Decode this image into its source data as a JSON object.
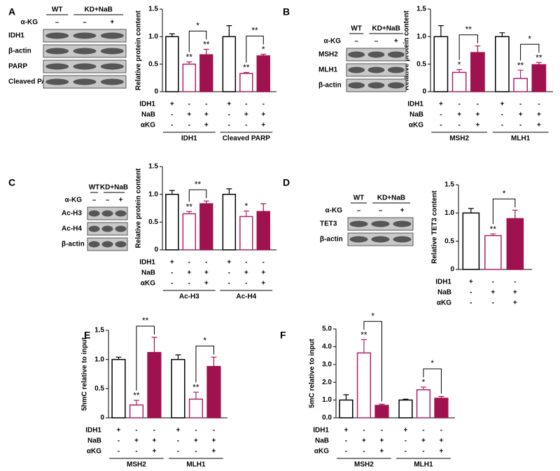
{
  "chart_data": [
    {
      "panel": "A",
      "type": "bar",
      "ylabel": "Relative protein content",
      "ylim": [
        0,
        1.5
      ],
      "yticks": [
        0,
        0.5,
        {
          "value": 1,
          "label": "1.0"
        },
        1.5
      ],
      "categories": [
        "IDH1",
        "Cleaved PARP"
      ],
      "condition_labels": [
        "IDH1",
        "NaB",
        "αKG"
      ],
      "series": [
        {
          "color": "#ffffff",
          "edgecolor": "#000000",
          "conditions": [
            "+",
            "-",
            "-"
          ],
          "values": [
            1.0,
            1.0
          ],
          "errors": [
            0.05,
            0.2
          ]
        },
        {
          "color": "#ffffff",
          "edgecolor": "#b0206a",
          "conditions": [
            "-",
            "+",
            "-"
          ],
          "values": [
            0.5,
            0.33
          ],
          "errors": [
            0.04,
            0.02
          ],
          "star_labels": [
            "**",
            "**"
          ]
        },
        {
          "color": "#a0124f",
          "edgecolor": "#a0124f",
          "conditions": [
            "-",
            "+",
            "+"
          ],
          "values": [
            0.67,
            0.65
          ],
          "errors": [
            0.1,
            0.03
          ],
          "star_labels": [
            "**",
            "*"
          ]
        }
      ],
      "bracket_labels": [
        "*",
        "**"
      ]
    },
    {
      "panel": "B",
      "type": "bar",
      "ylabel": "Relative protein content",
      "ylim": [
        0,
        1.5
      ],
      "yticks": [
        0,
        0.5,
        {
          "value": 1,
          "label": "1.0"
        },
        1.5
      ],
      "categories": [
        "MSH2",
        "MLH1"
      ],
      "condition_labels": [
        "IDH1",
        "NaB",
        "αKG"
      ],
      "series": [
        {
          "color": "#ffffff",
          "edgecolor": "#000000",
          "conditions": [
            "+",
            "-",
            "-"
          ],
          "values": [
            1.0,
            1.0
          ],
          "errors": [
            0.2,
            0.07
          ]
        },
        {
          "color": "#ffffff",
          "edgecolor": "#b0206a",
          "conditions": [
            "-",
            "+",
            "-"
          ],
          "values": [
            0.35,
            0.24
          ],
          "errors": [
            0.05,
            0.15
          ],
          "star_labels": [
            "*",
            "**"
          ]
        },
        {
          "color": "#a0124f",
          "edgecolor": "#a0124f",
          "conditions": [
            "-",
            "+",
            "+"
          ],
          "values": [
            0.71,
            0.49
          ],
          "errors": [
            0.12,
            0.04
          ],
          "star_labels": [
            null,
            "**"
          ]
        }
      ],
      "bracket_labels": [
        "**",
        "*"
      ]
    },
    {
      "panel": "C",
      "type": "bar",
      "ylabel": "Relative protein content",
      "ylim": [
        0,
        1.5
      ],
      "yticks": [
        0,
        0.5,
        {
          "value": 1,
          "label": "1.0"
        },
        1.5
      ],
      "categories": [
        "Ac-H3",
        "Ac-H4"
      ],
      "condition_labels": [
        "IDH1",
        "NaB",
        "αKG"
      ],
      "series": [
        {
          "color": "#ffffff",
          "edgecolor": "#000000",
          "conditions": [
            "+",
            "-",
            "-"
          ],
          "values": [
            1.0,
            1.0
          ],
          "errors": [
            0.07,
            0.1
          ]
        },
        {
          "color": "#ffffff",
          "edgecolor": "#b0206a",
          "conditions": [
            "-",
            "+",
            "-"
          ],
          "values": [
            0.65,
            0.6
          ],
          "errors": [
            0.04,
            0.1
          ],
          "star_labels": [
            "**",
            "*"
          ]
        },
        {
          "color": "#a0124f",
          "edgecolor": "#a0124f",
          "conditions": [
            "-",
            "+",
            "+"
          ],
          "values": [
            0.83,
            0.69
          ],
          "errors": [
            0.05,
            0.14
          ]
        }
      ],
      "bracket_labels": [
        "**",
        null
      ]
    },
    {
      "panel": "D",
      "type": "bar",
      "ylabel": "Relative TET3 content",
      "ylim": [
        0,
        1.5
      ],
      "yticks": [
        0,
        0.5,
        {
          "value": 1,
          "label": "1.0"
        },
        1.5
      ],
      "categories": [
        null
      ],
      "condition_labels": [
        "IDH1",
        "NaB",
        "αKG"
      ],
      "series": [
        {
          "color": "#ffffff",
          "edgecolor": "#000000",
          "conditions": [
            "+",
            "-",
            "-"
          ],
          "values": [
            1.0
          ],
          "errors": [
            0.08
          ]
        },
        {
          "color": "#ffffff",
          "edgecolor": "#b0206a",
          "conditions": [
            "-",
            "+",
            "-"
          ],
          "values": [
            0.6
          ],
          "errors": [
            0.03
          ],
          "star_labels": [
            "**"
          ]
        },
        {
          "color": "#a0124f",
          "edgecolor": "#a0124f",
          "conditions": [
            "-",
            "+",
            "+"
          ],
          "values": [
            0.9
          ],
          "errors": [
            0.15
          ]
        }
      ],
      "bracket_labels": [
        "*"
      ]
    },
    {
      "panel": "E",
      "type": "bar",
      "ylabel": "5hmC relative to input",
      "ylim": [
        0,
        1.5
      ],
      "yticks": [
        0,
        0.5,
        {
          "value": 1,
          "label": "1.0"
        },
        1.5
      ],
      "categories": [
        "MSH2",
        "MLH1"
      ],
      "condition_labels": [
        "IDH1",
        "NaB",
        "αKG"
      ],
      "series": [
        {
          "color": "#ffffff",
          "edgecolor": "#000000",
          "conditions": [
            "+",
            "-",
            "-"
          ],
          "values": [
            1.0,
            1.0
          ],
          "errors": [
            0.04,
            0.08
          ]
        },
        {
          "color": "#ffffff",
          "edgecolor": "#b0206a",
          "conditions": [
            "-",
            "+",
            "-"
          ],
          "values": [
            0.22,
            0.32
          ],
          "errors": [
            0.08,
            0.12
          ],
          "star_labels": [
            "**",
            "**"
          ]
        },
        {
          "color": "#a0124f",
          "edgecolor": "#a0124f",
          "conditions": [
            "-",
            "+",
            "+"
          ],
          "values": [
            1.12,
            0.88
          ],
          "errors": [
            0.26,
            0.16
          ]
        }
      ],
      "bracket_labels": [
        "**",
        "*"
      ]
    },
    {
      "panel": "F",
      "type": "bar",
      "ylabel": "5mC relative to input",
      "ylim": [
        0,
        5
      ],
      "yticks": [
        {
          "value": 0,
          "label": "0.0"
        },
        {
          "value": 1,
          "label": "1.0"
        },
        {
          "value": 2,
          "label": "2.0"
        },
        {
          "value": 3,
          "label": "3.0"
        },
        {
          "value": 4,
          "label": "4.0"
        },
        {
          "value": 5,
          "label": "5.0"
        }
      ],
      "categories": [
        "MSH2",
        "MLH1"
      ],
      "condition_labels": [
        "IDH1",
        "NaB",
        "αKG"
      ],
      "series": [
        {
          "color": "#ffffff",
          "edgecolor": "#000000",
          "conditions": [
            "+",
            "-",
            "-"
          ],
          "values": [
            1.0,
            1.0
          ],
          "errors": [
            0.3,
            0.05
          ]
        },
        {
          "color": "#ffffff",
          "edgecolor": "#b0206a",
          "conditions": [
            "-",
            "+",
            "-"
          ],
          "values": [
            3.65,
            1.58
          ],
          "errors": [
            0.75,
            0.15
          ],
          "star_labels": [
            "**",
            "*"
          ]
        },
        {
          "color": "#a0124f",
          "edgecolor": "#a0124f",
          "conditions": [
            "-",
            "+",
            "+"
          ],
          "values": [
            0.7,
            1.1
          ],
          "errors": [
            0.07,
            0.1
          ]
        }
      ],
      "bracket_labels": [
        "*",
        "*"
      ]
    }
  ],
  "blots": [
    {
      "lanes": [
        "WT",
        "KD+NaB"
      ],
      "treatment": "α-KG",
      "signs": [
        "–",
        "–",
        "+"
      ],
      "rows": [
        "IDH1",
        "β-actin",
        "PARP",
        "Cleaved PARP"
      ]
    },
    {
      "lanes": [
        "WT",
        "KD+NaB"
      ],
      "treatment": "α-KG",
      "signs": [
        "–",
        "–",
        "+"
      ],
      "rows": [
        "MSH2",
        "MLH1",
        "β-actin"
      ]
    },
    {
      "lanes": [
        "WT",
        "KD+NaB"
      ],
      "treatment": "α-KG",
      "signs": [
        "–",
        "–",
        "+"
      ],
      "rows": [
        "Ac-H3",
        "Ac-H4",
        "β-actin"
      ]
    },
    {
      "lanes": [
        "WT",
        "KD+NaB"
      ],
      "treatment": "α-KG",
      "signs": [
        "–",
        "–",
        "+"
      ],
      "rows": [
        "TET3",
        "β-actin"
      ]
    }
  ]
}
